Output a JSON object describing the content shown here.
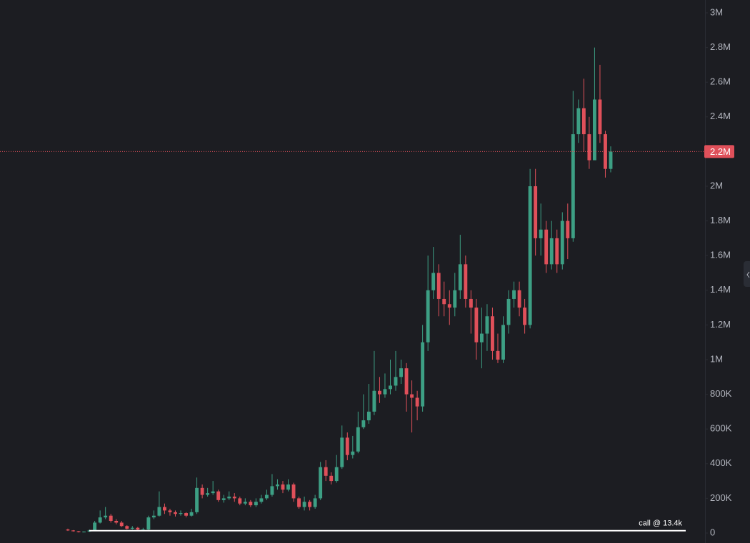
{
  "chart_data": {
    "type": "candlestick",
    "ylim": [
      0,
      3000000
    ],
    "yticks": [
      0,
      {
        "value": 200000,
        "label": "200K"
      },
      {
        "value": 400000,
        "label": "400K"
      },
      {
        "value": 600000,
        "label": "600K"
      },
      {
        "value": 800000,
        "label": "800K"
      },
      {
        "value": 1000000,
        "label": "1M"
      },
      {
        "value": 1200000,
        "label": "1.2M"
      },
      {
        "value": 1400000,
        "label": "1.4M"
      },
      {
        "value": 1600000,
        "label": "1.6M"
      },
      {
        "value": 1800000,
        "label": "1.8M"
      },
      {
        "value": 2000000,
        "label": "2M"
      },
      {
        "value": 2200000,
        "label": "2.2M"
      },
      {
        "value": 2400000,
        "label": "2.4M"
      },
      {
        "value": 2600000,
        "label": "2.6M"
      },
      {
        "value": 2800000,
        "label": "2.8M"
      },
      {
        "value": 3000000,
        "label": "3M"
      }
    ],
    "grid": false,
    "up_color": "#3d9f84",
    "down_color": "#e0505a",
    "last_price": {
      "value": 2200000,
      "label": "2.2M",
      "color": "#e0505a"
    },
    "annotation": {
      "value": 13400,
      "label": "call @ 13.4k",
      "color": "#ffffff"
    },
    "open": [
      20000,
      15000,
      10000,
      5000,
      8000,
      15000,
      60000,
      90000,
      100000,
      70000,
      60000,
      40000,
      25000,
      30000,
      20000,
      20000,
      90000,
      100000,
      150000,
      130000,
      120000,
      110000,
      115000,
      100000,
      120000,
      260000,
      220000,
      230000,
      240000,
      190000,
      200000,
      210000,
      200000,
      170000,
      180000,
      160000,
      180000,
      200000,
      220000,
      270000,
      280000,
      250000,
      280000,
      200000,
      150000,
      180000,
      150000,
      200000,
      380000,
      330000,
      300000,
      380000,
      550000,
      450000,
      470000,
      610000,
      650000,
      700000,
      820000,
      800000,
      830000,
      850000,
      900000,
      950000,
      800000,
      780000,
      730000,
      1100000,
      1400000,
      1500000,
      1350000,
      1320000,
      1300000,
      1400000,
      1550000,
      1350000,
      1300000,
      1100000,
      1150000,
      1250000,
      1050000,
      1000000,
      1200000,
      1350000,
      1400000,
      1300000,
      1200000,
      2000000,
      1700000,
      1750000,
      1550000,
      1700000,
      1550000,
      1800000,
      1700000,
      2300000,
      2450000,
      2300000,
      2150000,
      2500000,
      2300000,
      2100000
    ],
    "high": [
      25000,
      17000,
      12000,
      10000,
      20000,
      70000,
      130000,
      150000,
      110000,
      80000,
      70000,
      45000,
      40000,
      35000,
      30000,
      100000,
      130000,
      240000,
      170000,
      140000,
      130000,
      130000,
      120000,
      140000,
      320000,
      280000,
      260000,
      300000,
      250000,
      220000,
      240000,
      230000,
      210000,
      200000,
      190000,
      200000,
      220000,
      250000,
      340000,
      310000,
      300000,
      310000,
      290000,
      210000,
      210000,
      190000,
      220000,
      410000,
      420000,
      350000,
      450000,
      620000,
      580000,
      560000,
      700000,
      800000,
      860000,
      1050000,
      900000,
      920000,
      1000000,
      1050000,
      1000000,
      980000,
      880000,
      820000,
      1200000,
      1600000,
      1650000,
      1550000,
      1450000,
      1400000,
      1500000,
      1720000,
      1600000,
      1400000,
      1350000,
      1300000,
      1320000,
      1300000,
      1150000,
      1250000,
      1400000,
      1450000,
      1450000,
      1350000,
      2100000,
      2100000,
      1900000,
      1800000,
      1800000,
      1750000,
      1850000,
      1900000,
      2550000,
      2500000,
      2620000,
      2400000,
      2800000,
      2700000,
      2320000,
      2230000
    ],
    "low": [
      12000,
      8000,
      3000,
      3000,
      6000,
      12000,
      55000,
      80000,
      60000,
      50000,
      35000,
      20000,
      20000,
      15000,
      10000,
      15000,
      80000,
      95000,
      110000,
      100000,
      95000,
      100000,
      90000,
      95000,
      110000,
      200000,
      210000,
      220000,
      180000,
      175000,
      190000,
      180000,
      160000,
      160000,
      150000,
      150000,
      170000,
      190000,
      210000,
      250000,
      230000,
      240000,
      180000,
      140000,
      130000,
      130000,
      140000,
      190000,
      300000,
      280000,
      290000,
      370000,
      420000,
      430000,
      460000,
      600000,
      630000,
      680000,
      750000,
      780000,
      800000,
      820000,
      860000,
      700000,
      580000,
      650000,
      700000,
      1050000,
      1350000,
      1250000,
      1250000,
      1200000,
      1250000,
      1350000,
      1300000,
      1150000,
      1000000,
      950000,
      1050000,
      1000000,
      980000,
      980000,
      1150000,
      1300000,
      1250000,
      1150000,
      1180000,
      1600000,
      1600000,
      1500000,
      1520000,
      1500000,
      1520000,
      1580000,
      1680000,
      2250000,
      2200000,
      2100000,
      2150000,
      2250000,
      2050000,
      2080000
    ],
    "close": [
      15000,
      10000,
      5000,
      8000,
      15000,
      60000,
      90000,
      100000,
      70000,
      60000,
      40000,
      25000,
      30000,
      20000,
      20000,
      90000,
      100000,
      150000,
      130000,
      120000,
      110000,
      115000,
      100000,
      120000,
      260000,
      220000,
      230000,
      240000,
      190000,
      200000,
      210000,
      200000,
      170000,
      180000,
      160000,
      180000,
      200000,
      220000,
      270000,
      280000,
      250000,
      280000,
      200000,
      150000,
      180000,
      150000,
      200000,
      380000,
      330000,
      300000,
      380000,
      550000,
      450000,
      470000,
      610000,
      650000,
      700000,
      820000,
      800000,
      830000,
      850000,
      900000,
      950000,
      800000,
      780000,
      730000,
      1100000,
      1400000,
      1500000,
      1350000,
      1320000,
      1300000,
      1400000,
      1550000,
      1350000,
      1300000,
      1100000,
      1150000,
      1250000,
      1050000,
      1000000,
      1200000,
      1350000,
      1400000,
      1300000,
      1200000,
      2000000,
      1700000,
      1750000,
      1550000,
      1700000,
      1550000,
      1800000,
      1700000,
      2300000,
      2450000,
      2300000,
      2150000,
      2500000,
      2300000,
      2100000,
      2200000
    ]
  }
}
